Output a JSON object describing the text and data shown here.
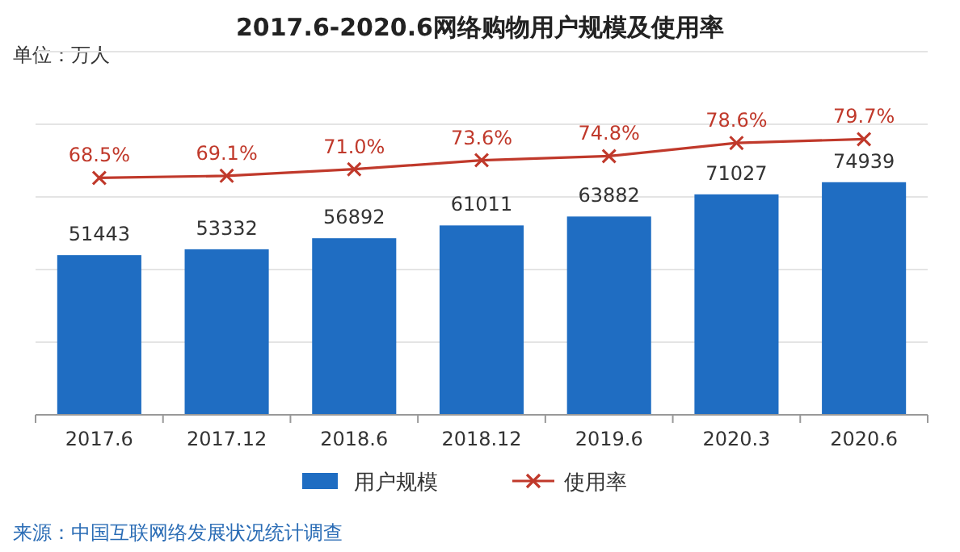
{
  "chart_data": {
    "type": "bar",
    "title": "2017.6-2020.6网络购物用户规模及使用率",
    "annotations": [
      "单位：万人",
      "来源：中国互联网络发展状况统计调查"
    ],
    "categories": [
      "2017.6",
      "2017.12",
      "2018.6",
      "2018.12",
      "2019.6",
      "2020.3",
      "2020.6"
    ],
    "series": [
      {
        "name": "用户规模",
        "type": "bar",
        "color": "#1f6dc2",
        "values": [
          51443,
          53332,
          56892,
          61011,
          63882,
          71027,
          74939
        ],
        "value_labels": [
          "51443",
          "53332",
          "56892",
          "61011",
          "63882",
          "71027",
          "74939"
        ]
      },
      {
        "name": "使用率",
        "type": "line",
        "axis": "y2",
        "color": "#c0392b",
        "marker": "cross",
        "values": [
          68.5,
          69.1,
          71.0,
          73.6,
          74.8,
          78.6,
          79.7
        ],
        "value_labels": [
          "68.5%",
          "69.1%",
          "71.0%",
          "73.6%",
          "74.8%",
          "78.6%",
          "79.7%"
        ]
      }
    ],
    "ylim": [
      0,
      117000
    ],
    "y2lim": [
      0,
      105
    ],
    "tick_labels": "x",
    "grid": "y",
    "legend": "bottom"
  }
}
